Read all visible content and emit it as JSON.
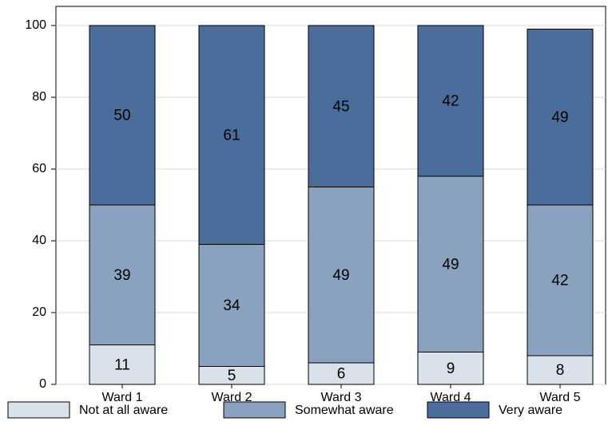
{
  "chart_data": {
    "type": "stacked_bar",
    "categories": [
      "Ward 1",
      "Ward 2",
      "Ward 3",
      "Ward 4",
      "Ward 5"
    ],
    "series": [
      {
        "name": "Not at all aware",
        "color": "#d9e1ea",
        "values": [
          11,
          5,
          6,
          9,
          8
        ]
      },
      {
        "name": "Somewhat aware",
        "color": "#8aa2c0",
        "values": [
          39,
          34,
          49,
          49,
          42
        ]
      },
      {
        "name": "Very aware",
        "color": "#4a6d9b",
        "values": [
          50,
          61,
          45,
          42,
          49
        ]
      }
    ],
    "ylim": [
      0,
      100
    ],
    "yticks": [
      0,
      20,
      40,
      60,
      80,
      100
    ],
    "grid": true,
    "legend": "bottom"
  }
}
